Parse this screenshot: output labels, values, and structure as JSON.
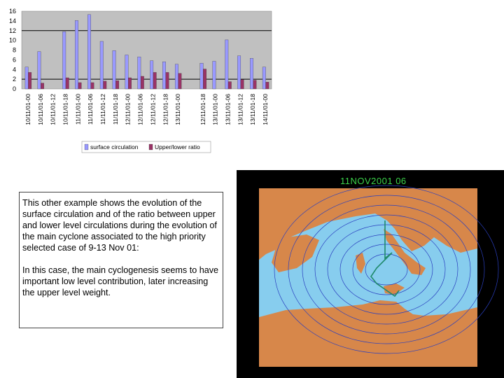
{
  "chart_data": {
    "type": "bar",
    "categories": [
      "10/11/01-00",
      "10/11/01-06",
      "10/11/01-12",
      "10/11/01-18",
      "11/11/01-00",
      "11/11/01-06",
      "11/11/01-12",
      "11/11/01-18",
      "12/11/01-00",
      "12/11/01-06",
      "12/11/01-12",
      "12/11/01-18",
      "13/11/01-00",
      "",
      "12/11/01-18",
      "13/11/01-00",
      "13/11/01-06",
      "13/11/01-12",
      "13/11/01-18",
      "14/11/01-00"
    ],
    "series": [
      {
        "name": "surface circulation",
        "color": "#9999ff",
        "values": [
          4.5,
          7.7,
          null,
          11.8,
          14.1,
          15.3,
          9.8,
          7.9,
          7.0,
          6.6,
          5.8,
          5.6,
          5.1,
          null,
          5.3,
          5.7,
          10.1,
          6.8,
          6.3,
          4.5
        ]
      },
      {
        "name": "Upper/lower ratio",
        "color": "#993366",
        "values": [
          3.4,
          1.2,
          null,
          2.3,
          1.3,
          1.3,
          1.6,
          1.7,
          2.3,
          2.6,
          3.4,
          3.4,
          3.2,
          null,
          4.1,
          null,
          1.5,
          1.9,
          1.8,
          1.4
        ]
      }
    ],
    "ylim": [
      0,
      16
    ],
    "yticks": [
      "16",
      "14",
      "12",
      "10",
      "8",
      "6",
      "4",
      "2",
      "0"
    ],
    "reference_lines": [
      12,
      2
    ],
    "grid": false,
    "legend": "bottom"
  },
  "text_box": {
    "paragraph1": "This other example shows the evolution of the surface circulation and of the ratio between upper and lower level circulations during the evolution of the main cyclone associated to the high priority selected case of 9-13 Nov 01:",
    "paragraph2": "In this case, the main cyclogenesis seems to have important low level contribution, later increasing the upper level weight."
  },
  "map": {
    "title": "11NOV2001  06",
    "sea_color": "#87cdee",
    "land_color": "#d7874a",
    "track_color": "#1f8a6b",
    "isobar_color": "#2a3fbf"
  }
}
